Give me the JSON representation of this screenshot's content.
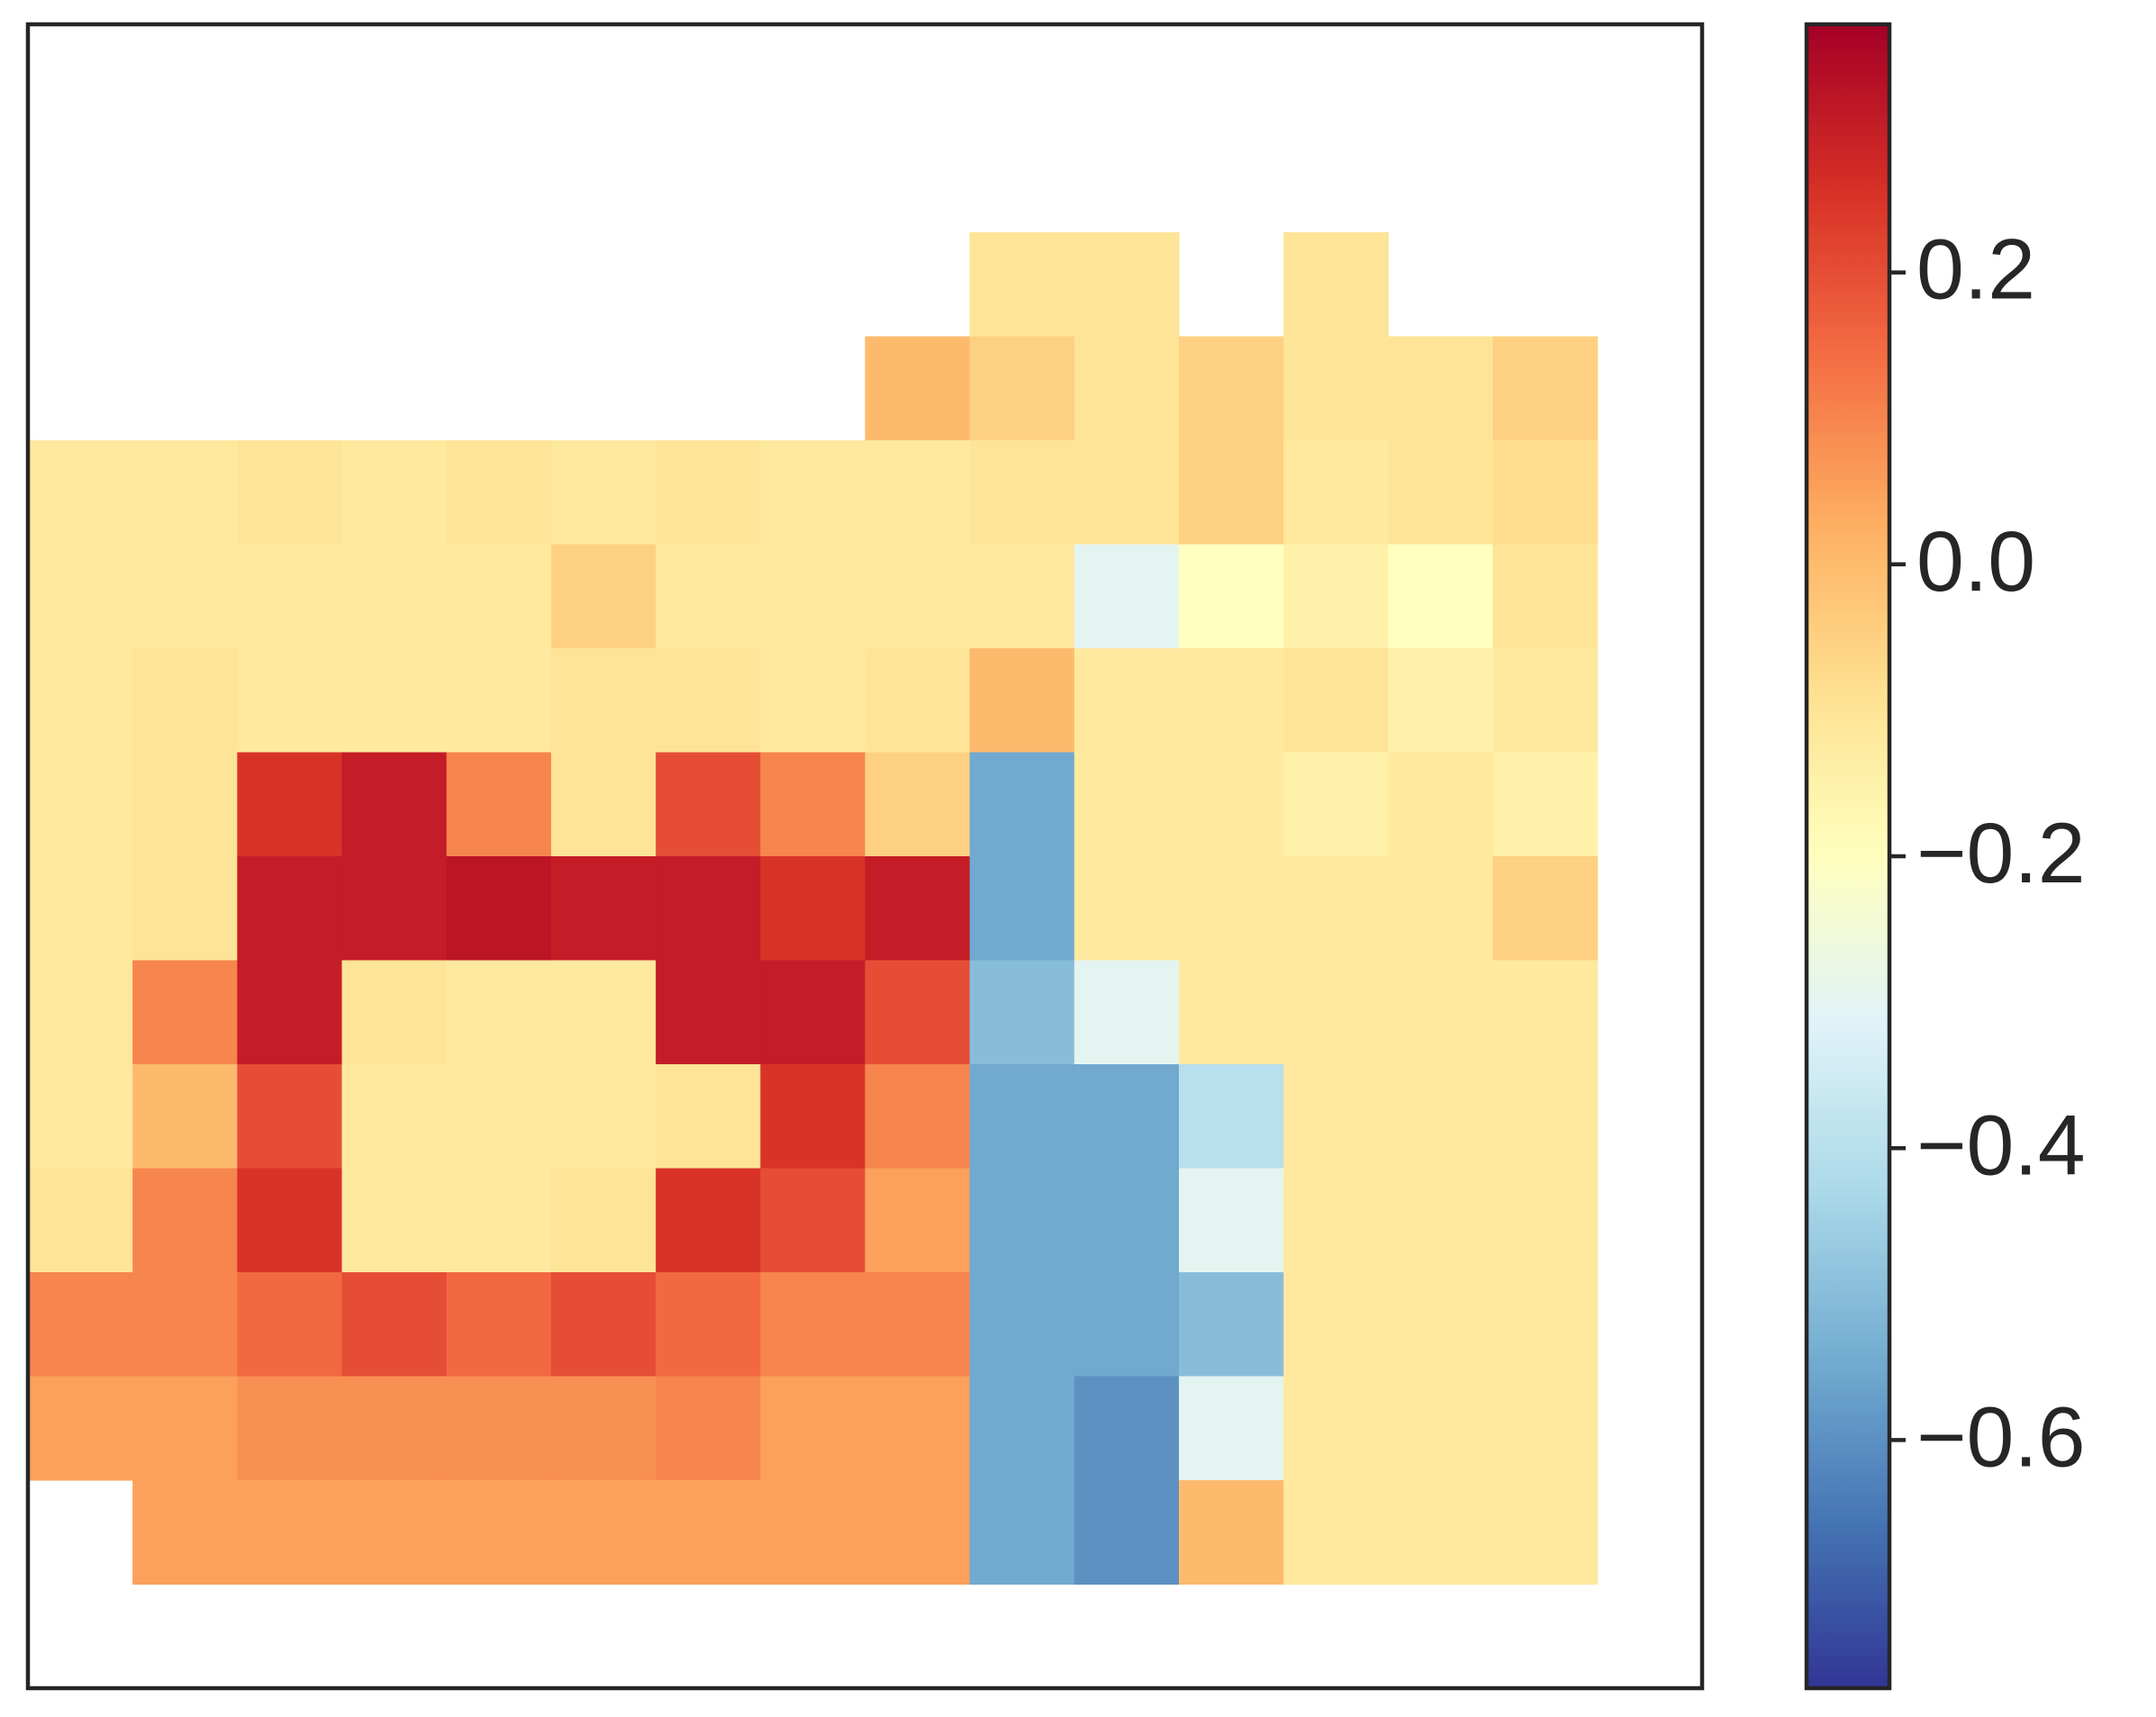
{
  "chart_data": {
    "type": "heatmap",
    "colormap": [
      "#313695",
      "#4575b4",
      "#74add1",
      "#abd9e9",
      "#e0f3f8",
      "#ffffbf",
      "#fee090",
      "#fdae61",
      "#f46d43",
      "#d73027",
      "#a50026"
    ],
    "clim": [
      -0.77,
      0.37
    ],
    "cticks": [
      {
        "value": 0.2,
        "label": "0.2"
      },
      {
        "value": 0.0,
        "label": "0.0"
      },
      {
        "value": -0.2,
        "label": "−0.2"
      },
      {
        "value": -0.4,
        "label": "−0.4"
      },
      {
        "value": -0.6,
        "label": "−0.6"
      }
    ],
    "z": [
      [
        null,
        null,
        null,
        null,
        null,
        null,
        null,
        null,
        null,
        null,
        null,
        null,
        null,
        null,
        null,
        null
      ],
      [
        null,
        null,
        null,
        null,
        null,
        null,
        null,
        null,
        null,
        null,
        null,
        null,
        null,
        null,
        null,
        null
      ],
      [
        null,
        null,
        null,
        null,
        null,
        null,
        null,
        null,
        null,
        -0.1,
        -0.1,
        null,
        -0.1,
        null,
        null,
        null
      ],
      [
        null,
        null,
        null,
        null,
        null,
        null,
        null,
        null,
        0.0,
        -0.05,
        -0.1,
        -0.05,
        -0.1,
        -0.1,
        -0.05,
        null
      ],
      [
        -0.12,
        -0.12,
        -0.1,
        -0.12,
        -0.1,
        -0.12,
        -0.1,
        -0.12,
        -0.12,
        -0.1,
        -0.1,
        -0.05,
        -0.12,
        -0.1,
        -0.08,
        null
      ],
      [
        -0.12,
        -0.12,
        -0.12,
        -0.12,
        -0.12,
        -0.05,
        -0.12,
        -0.12,
        -0.12,
        -0.12,
        -0.3,
        -0.2,
        -0.15,
        -0.2,
        -0.1,
        null
      ],
      [
        -0.12,
        -0.1,
        -0.12,
        -0.12,
        -0.12,
        -0.1,
        -0.1,
        -0.12,
        -0.1,
        0.0,
        -0.12,
        -0.12,
        -0.1,
        -0.15,
        -0.12,
        null
      ],
      [
        -0.12,
        -0.1,
        0.25,
        0.3,
        0.1,
        -0.1,
        0.2,
        0.1,
        -0.05,
        -0.55,
        -0.12,
        -0.12,
        -0.15,
        -0.12,
        -0.15,
        null
      ],
      [
        -0.12,
        -0.1,
        0.3,
        0.3,
        0.32,
        0.3,
        0.3,
        0.25,
        0.3,
        -0.55,
        -0.12,
        -0.12,
        -0.12,
        -0.12,
        -0.05,
        null
      ],
      [
        -0.12,
        0.1,
        0.3,
        -0.1,
        -0.12,
        -0.12,
        0.3,
        0.3,
        0.2,
        -0.5,
        -0.3,
        -0.12,
        -0.12,
        -0.12,
        -0.12,
        null
      ],
      [
        -0.12,
        0.0,
        0.2,
        -0.12,
        -0.12,
        -0.12,
        -0.1,
        0.25,
        0.1,
        -0.55,
        -0.55,
        -0.4,
        -0.12,
        -0.12,
        -0.12,
        null
      ],
      [
        -0.1,
        0.1,
        0.25,
        -0.12,
        -0.12,
        -0.1,
        0.25,
        0.2,
        0.05,
        -0.55,
        -0.55,
        -0.3,
        -0.12,
        -0.12,
        -0.12,
        null
      ],
      [
        0.1,
        0.1,
        0.15,
        0.2,
        0.15,
        0.2,
        0.15,
        0.1,
        0.1,
        -0.55,
        -0.55,
        -0.5,
        -0.12,
        -0.12,
        -0.12,
        null
      ],
      [
        0.05,
        0.05,
        0.08,
        0.08,
        0.08,
        0.08,
        0.1,
        0.05,
        0.05,
        -0.55,
        -0.6,
        -0.3,
        -0.12,
        -0.12,
        -0.12,
        null
      ],
      [
        null,
        0.05,
        0.05,
        0.05,
        0.05,
        0.05,
        0.05,
        0.05,
        0.05,
        -0.55,
        -0.6,
        0.0,
        -0.12,
        -0.12,
        -0.12,
        null
      ],
      [
        null,
        null,
        null,
        null,
        null,
        null,
        null,
        null,
        null,
        null,
        null,
        null,
        null,
        null,
        null,
        null
      ]
    ]
  }
}
